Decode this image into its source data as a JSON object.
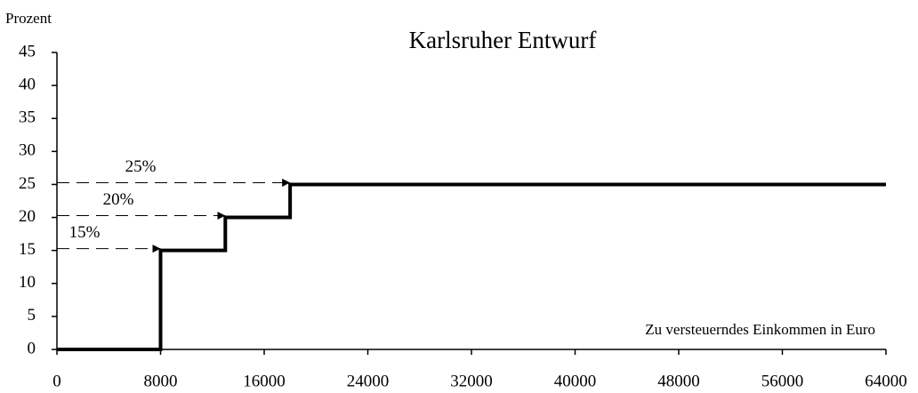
{
  "chart_data": {
    "type": "line",
    "title": "Karlsruher Entwurf",
    "xlabel": "Zu versteuerndes Einkommen in Euro",
    "ylabel": "Prozent",
    "x": [
      0,
      8000,
      8000,
      13000,
      13000,
      18000,
      18000,
      64000
    ],
    "series": [
      {
        "color": "#000000",
        "values": [
          0,
          0,
          15,
          15,
          20,
          20,
          25,
          25
        ]
      }
    ],
    "xlim": [
      0,
      64000
    ],
    "xticks": [
      0,
      8000,
      16000,
      24000,
      32000,
      40000,
      48000,
      56000,
      64000
    ],
    "ylim": [
      0,
      45
    ],
    "yticks": [
      0,
      5,
      10,
      15,
      20,
      25,
      30,
      35,
      40,
      45
    ],
    "annotations": [
      {
        "text": "15%",
        "x": 8000,
        "y": 15
      },
      {
        "text": "20%",
        "x": 13000,
        "y": 20
      },
      {
        "text": "25%",
        "x": 18000,
        "y": 25
      }
    ]
  }
}
